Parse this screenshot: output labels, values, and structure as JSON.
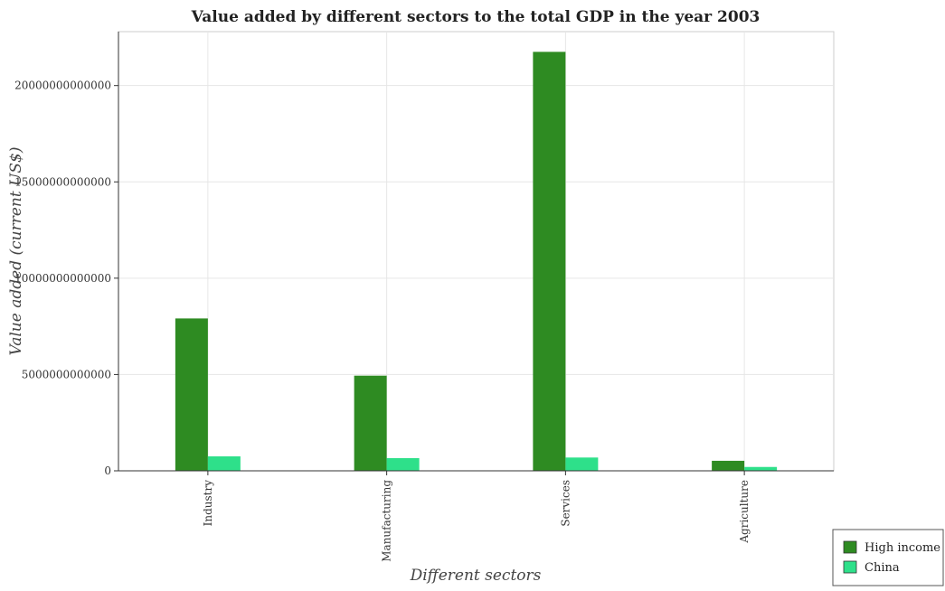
{
  "chart_data": {
    "type": "bar",
    "title": "Value added by different sectors to the total GDP in the year 2003",
    "xlabel": "Different sectors",
    "ylabel": "Value added (current US$)",
    "categories": [
      "Industry",
      "Manufacturing",
      "Services",
      "Agriculture"
    ],
    "series": [
      {
        "name": "High income",
        "color": "#2e8b22",
        "values": [
          7910000000000,
          4940000000000,
          21750000000000,
          520000000000
        ]
      },
      {
        "name": "China",
        "color": "#2ee08a",
        "values": [
          750000000000,
          660000000000,
          690000000000,
          200000000000
        ]
      }
    ],
    "ylim": [
      0,
      22800000000000
    ],
    "yticks": [
      0,
      5000000000000,
      10000000000000,
      15000000000000,
      20000000000000
    ],
    "ytick_labels": [
      "0",
      "5000000000000",
      "10000000000000",
      "15000000000000",
      "20000000000000"
    ],
    "grid": true,
    "legend_position": "bottom-right"
  }
}
